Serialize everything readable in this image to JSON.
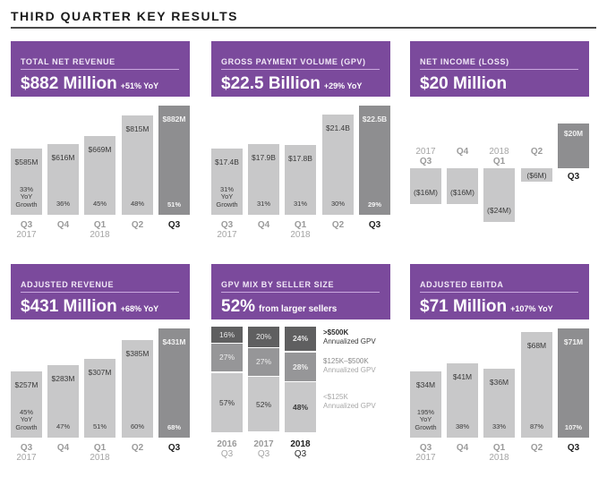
{
  "page": {
    "title": "THIRD QUARTER KEY RESULTS"
  },
  "colors": {
    "header_purple": "#7b4a9c",
    "bar_prior": "#c8c8c9",
    "bar_current": "#8e8e90",
    "segment_large": "#5f5f60",
    "segment_mid": "#969698",
    "segment_small": "#c8c8c9"
  },
  "panels": {
    "total_net_revenue": {
      "label": "TOTAL NET REVENUE",
      "headline": "$882 Million",
      "change": "+51% YoY"
    },
    "gpv": {
      "label": "GROSS PAYMENT VOLUME (GPV)",
      "headline": "$22.5 Billion",
      "change": "+29% YoY"
    },
    "net_income": {
      "label": "NET INCOME (LOSS)",
      "headline": "$20 Million",
      "change": ""
    },
    "adjusted_revenue": {
      "label": "ADJUSTED REVENUE",
      "headline": "$431 Million",
      "change": "+68% YoY"
    },
    "gpv_mix": {
      "label": "GPV MIX BY SELLER SIZE",
      "headline": "52%",
      "change": "from larger sellers"
    },
    "adjusted_ebitda": {
      "label": "ADJUSTED EBITDA",
      "headline": "$71 Million",
      "change": "+107% YoY"
    }
  },
  "chart_data": [
    {
      "id": "total_net_revenue",
      "type": "bar",
      "title": "TOTAL NET REVENUE",
      "categories": [
        [
          "Q3",
          "2017"
        ],
        [
          "Q4",
          ""
        ],
        [
          "Q1",
          "2018"
        ],
        [
          "Q2",
          ""
        ],
        [
          "Q3",
          ""
        ]
      ],
      "values": [
        585,
        616,
        669,
        815,
        882
      ],
      "value_labels": [
        "$585M",
        "$616M",
        "$669M",
        "$815M",
        "$882M"
      ],
      "growth_labels": [
        "33%\nYoY\nGrowth",
        "36%",
        "45%",
        "48%",
        "51%"
      ],
      "unit": "$M",
      "ylim": [
        0,
        882
      ],
      "current_index": 4
    },
    {
      "id": "gpv",
      "type": "bar",
      "title": "GROSS PAYMENT VOLUME (GPV)",
      "categories": [
        [
          "Q3",
          "2017"
        ],
        [
          "Q4",
          ""
        ],
        [
          "Q1",
          "2018"
        ],
        [
          "Q2",
          ""
        ],
        [
          "Q3",
          ""
        ]
      ],
      "values": [
        17.4,
        17.9,
        17.8,
        21.4,
        22.5
      ],
      "value_labels": [
        "$17.4B",
        "$17.9B",
        "$17.8B",
        "$21.4B",
        "$22.5B"
      ],
      "growth_labels": [
        "31%\nYoY\nGrowth",
        "31%",
        "31%",
        "30%",
        "29%"
      ],
      "unit": "$B",
      "ylim": [
        0,
        22.5
      ],
      "current_index": 4
    },
    {
      "id": "net_income",
      "type": "bar",
      "title": "NET INCOME (LOSS)",
      "categories": [
        [
          "Q3",
          "2017"
        ],
        [
          "Q4",
          ""
        ],
        [
          "Q1",
          "2018"
        ],
        [
          "Q2",
          ""
        ],
        [
          "Q3",
          ""
        ]
      ],
      "values": [
        -16,
        -16,
        -24,
        -6,
        20
      ],
      "value_labels": [
        "($16M)",
        "($16M)",
        "($24M)",
        "($6M)",
        "$20M"
      ],
      "unit": "$M",
      "ylim": [
        -24,
        20
      ],
      "current_index": 4
    },
    {
      "id": "adjusted_revenue",
      "type": "bar",
      "title": "ADJUSTED REVENUE",
      "categories": [
        [
          "Q3",
          "2017"
        ],
        [
          "Q4",
          ""
        ],
        [
          "Q1",
          "2018"
        ],
        [
          "Q2",
          ""
        ],
        [
          "Q3",
          ""
        ]
      ],
      "values": [
        257,
        283,
        307,
        385,
        431
      ],
      "value_labels": [
        "$257M",
        "$283M",
        "$307M",
        "$385M",
        "$431M"
      ],
      "growth_labels": [
        "45%\nYoY\nGrowth",
        "47%",
        "51%",
        "60%",
        "68%"
      ],
      "unit": "$M",
      "ylim": [
        0,
        431
      ],
      "current_index": 4
    },
    {
      "id": "gpv_mix",
      "type": "bar",
      "stacked": true,
      "title": "GPV MIX BY SELLER SIZE",
      "categories": [
        [
          "2016",
          "Q3"
        ],
        [
          "2017",
          "Q3"
        ],
        [
          "2018",
          "Q3"
        ]
      ],
      "series": [
        {
          "name": ">$500K",
          "sub": "Annualized GPV",
          "values": [
            16,
            20,
            24
          ],
          "labels": [
            "16%",
            "20%",
            "24%"
          ]
        },
        {
          "name": "$125K–$500K",
          "sub": "Annualized GPV",
          "values": [
            27,
            27,
            28
          ],
          "labels": [
            "27%",
            "27%",
            "28%"
          ]
        },
        {
          "name": "<$125K",
          "sub": "Annualized GPV",
          "values": [
            57,
            52,
            48
          ],
          "labels": [
            "57%",
            "52%",
            "48%"
          ]
        }
      ],
      "unit": "%",
      "ylim": [
        0,
        100
      ],
      "current_index": 2
    },
    {
      "id": "adjusted_ebitda",
      "type": "bar",
      "title": "ADJUSTED EBITDA",
      "categories": [
        [
          "Q3",
          "2017"
        ],
        [
          "Q4",
          ""
        ],
        [
          "Q1",
          "2018"
        ],
        [
          "Q2",
          ""
        ],
        [
          "Q3",
          ""
        ]
      ],
      "values": [
        34,
        41,
        36,
        68,
        71
      ],
      "value_labels": [
        "$34M",
        "$41M",
        "$36M",
        "$68M",
        "$71M"
      ],
      "growth_labels": [
        "195%\nYoY\nGrowth",
        "38%",
        "33%",
        "87%",
        "107%"
      ],
      "unit": "$M",
      "ylim": [
        0,
        71
      ],
      "current_index": 4
    }
  ]
}
